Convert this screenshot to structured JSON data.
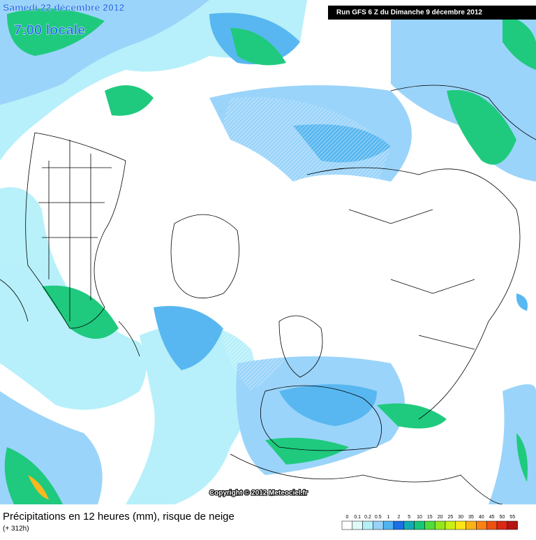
{
  "header": {
    "date": "Samedi 22 décembre 2012",
    "time": "7:00 locale",
    "run": "Run GFS 6 Z du Dimanche 9 décembre 2012"
  },
  "copyright": "Copyright © 2012 Meteociel.fr",
  "footer": {
    "title": "Précipitations en 12 heures (mm), risque de neige",
    "lead": "(+ 312h)"
  },
  "legend": [
    {
      "label": "0",
      "color": "#ffffff"
    },
    {
      "label": "0.1",
      "color": "#e1fafa"
    },
    {
      "label": "0.2",
      "color": "#b4f0fa"
    },
    {
      "label": "0.5",
      "color": "#96d2fa"
    },
    {
      "label": "1",
      "color": "#50b4f0"
    },
    {
      "label": "2",
      "color": "#1e6ee6"
    },
    {
      "label": "5",
      "color": "#14aab4"
    },
    {
      "label": "10",
      "color": "#14c878"
    },
    {
      "label": "15",
      "color": "#50dc3c"
    },
    {
      "label": "20",
      "color": "#96e61e"
    },
    {
      "label": "25",
      "color": "#c8f014"
    },
    {
      "label": "30",
      "color": "#fae614"
    },
    {
      "label": "35",
      "color": "#fab414"
    },
    {
      "label": "40",
      "color": "#fa8214"
    },
    {
      "label": "45",
      "color": "#f05014"
    },
    {
      "label": "50",
      "color": "#dc2814"
    },
    {
      "label": "55",
      "color": "#b41414"
    }
  ]
}
